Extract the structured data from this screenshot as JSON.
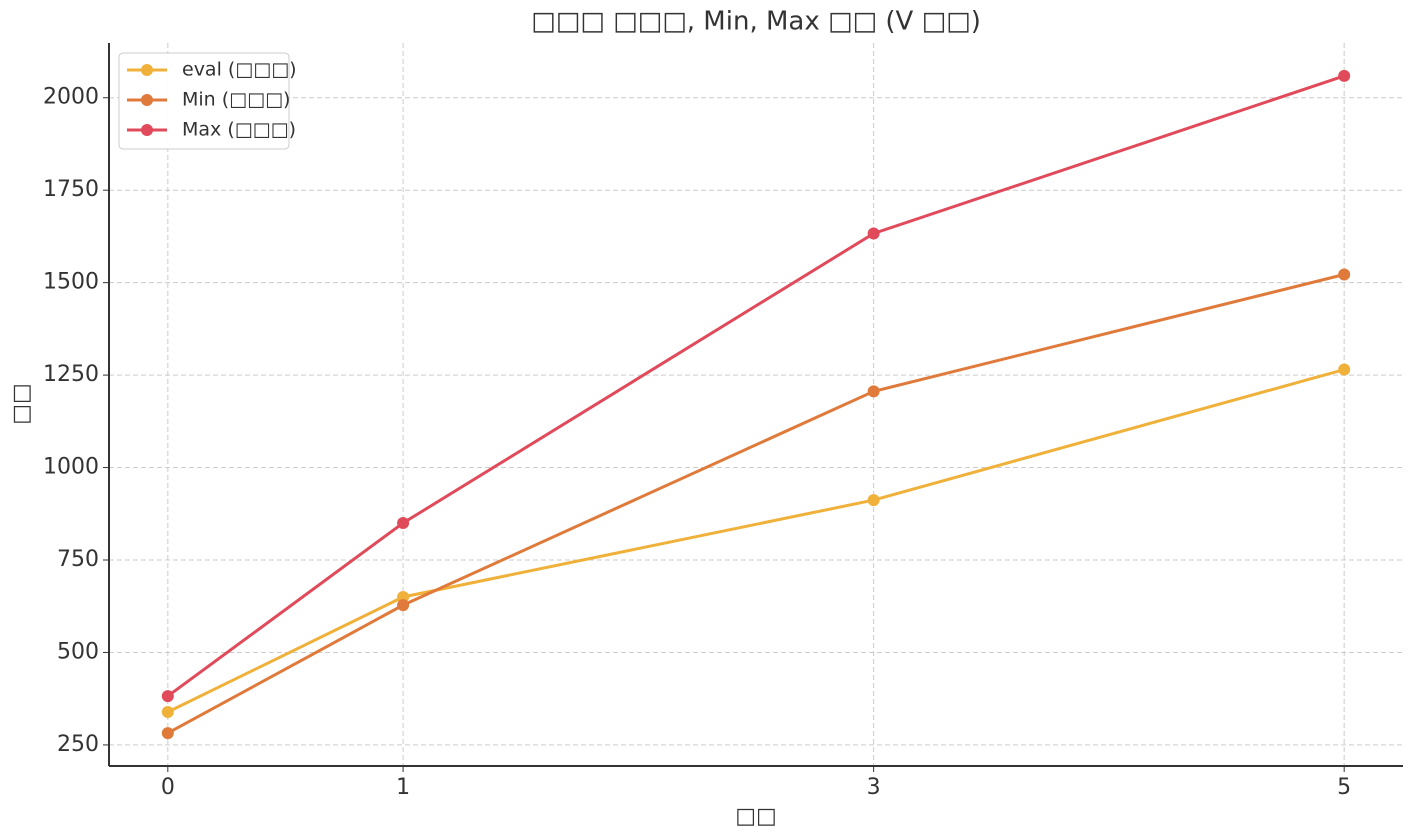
{
  "chart_data": {
    "type": "line",
    "title": "□□□ □□□, Min, Max □□ (V □□)",
    "x_label": "□□",
    "y_label": "□□",
    "x": [
      0,
      1,
      3,
      5
    ],
    "series": [
      {
        "name": "eval (□□□)",
        "color": "#f0b13a",
        "values": [
          339,
          650,
          912,
          1265
        ]
      },
      {
        "name": "Min (□□□)",
        "color": "#e07a3a",
        "values": [
          282,
          628,
          1206,
          1522
        ]
      },
      {
        "name": "Max (□□□)",
        "color": "#e04a5a",
        "values": [
          382,
          850,
          1633,
          2059
        ]
      }
    ],
    "xlim": [
      -0.25,
      5.25
    ],
    "xticks": [
      0,
      1,
      3,
      5
    ],
    "ylim": [
      193,
      2148
    ],
    "yticks": [
      250,
      500,
      750,
      1000,
      1250,
      1500,
      1750,
      2000
    ],
    "grid": true,
    "legend": "upper-left"
  }
}
